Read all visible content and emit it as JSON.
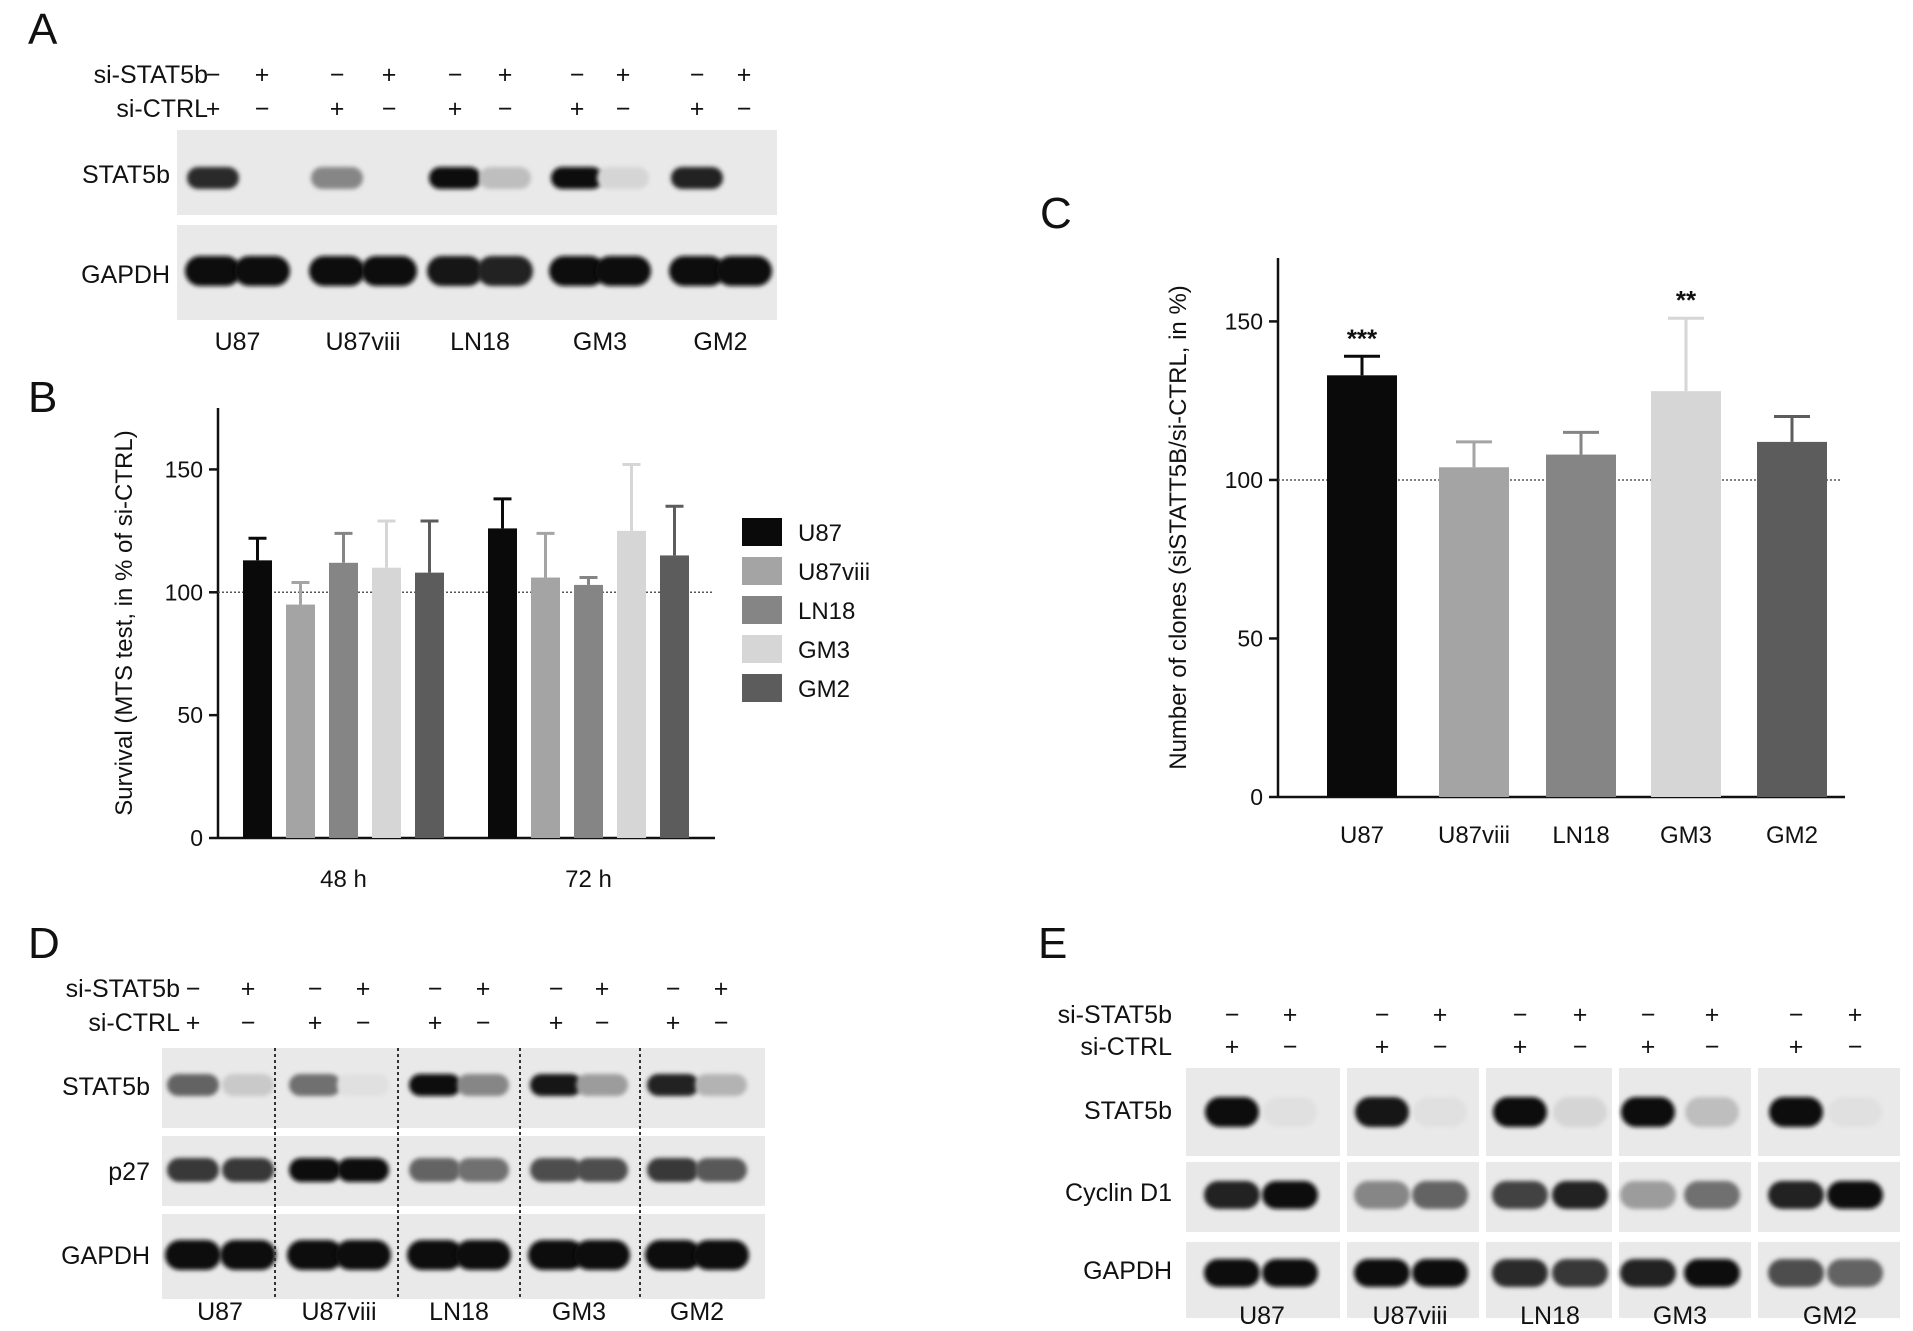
{
  "panel_letters": {
    "a": "A",
    "b": "B",
    "c": "C",
    "d": "D",
    "e": "E"
  },
  "blot_a": {
    "row_labels": {
      "stat": "STAT5b",
      "gapdh": "GAPDH"
    },
    "treat_labels": {
      "stat5b": "si-STAT5b",
      "ctrl": "si-CTRL"
    },
    "sign_plus": "+",
    "sign_minus": "−",
    "stat5b_pattern": [
      "−",
      "+",
      "−",
      "+",
      "−",
      "+",
      "−",
      "+",
      "−",
      "+"
    ],
    "ctrl_pattern": [
      "+",
      "−",
      "+",
      "−",
      "+",
      "−",
      "+",
      "−",
      "+",
      "−"
    ],
    "cell_lines": [
      "U87",
      "U87viii",
      "LN18",
      "GM3",
      "GM2"
    ],
    "band_intensity": {
      "stat5b": [
        0.85,
        0.0,
        0.45,
        0.0,
        1.0,
        0.2,
        1.0,
        0.1,
        0.9,
        0.0
      ],
      "gapdh": [
        1,
        1,
        1,
        1,
        0.95,
        0.9,
        1,
        1,
        1,
        1
      ]
    }
  },
  "blot_d": {
    "row_labels": {
      "stat": "STAT5b",
      "p27": "p27",
      "gapdh": "GAPDH"
    },
    "treat_labels": {
      "stat5b": "si-STAT5b",
      "ctrl": "si-CTRL"
    },
    "cell_lines": [
      "U87",
      "U87viii",
      "LN18",
      "GM3",
      "GM2"
    ],
    "band_intensity": {
      "stat5b": [
        0.6,
        0.15,
        0.55,
        0.05,
        1.0,
        0.45,
        0.95,
        0.35,
        0.9,
        0.25
      ],
      "p27": [
        0.8,
        0.8,
        1.0,
        1.0,
        0.6,
        0.55,
        0.7,
        0.7,
        0.8,
        0.65
      ],
      "gapdh": [
        1,
        1,
        1,
        1,
        1,
        1,
        1,
        1,
        1,
        1
      ]
    }
  },
  "blot_e": {
    "row_labels": {
      "stat": "STAT5b",
      "cyclin": "Cyclin D1",
      "gapdh": "GAPDH"
    },
    "treat_labels": {
      "stat5b": "si-STAT5b",
      "ctrl": "si-CTRL"
    },
    "cell_lines": [
      "U87",
      "U87viii",
      "LN18",
      "GM3",
      "GM2"
    ],
    "band_intensity": {
      "stat5b": [
        1.0,
        0.05,
        0.95,
        0.05,
        1.0,
        0.1,
        1.0,
        0.2,
        1.0,
        0.05
      ],
      "cyclin": [
        0.9,
        1.0,
        0.45,
        0.6,
        0.75,
        0.9,
        0.35,
        0.55,
        0.9,
        1.0
      ],
      "gapdh": [
        1,
        1,
        1,
        1,
        0.85,
        0.8,
        0.9,
        1,
        0.7,
        0.6
      ]
    }
  },
  "chart_data": [
    {
      "panel": "B",
      "type": "bar",
      "categories": [
        "48 h",
        "72 h"
      ],
      "ylabel": "Survival (MTS test, in % of si-CTRL)",
      "ylim": [
        0,
        175
      ],
      "yticks": [
        0,
        50,
        100,
        150
      ],
      "reference_line": 100,
      "legend_position": "right",
      "series": [
        {
          "name": "U87",
          "color": "#0a0a0a",
          "values": [
            113,
            126
          ],
          "errors": [
            9,
            12
          ]
        },
        {
          "name": "U87viii",
          "color": "#a4a4a4",
          "values": [
            95,
            106
          ],
          "errors": [
            9,
            18
          ]
        },
        {
          "name": "LN18",
          "color": "#858585",
          "values": [
            112,
            103
          ],
          "errors": [
            12,
            3
          ]
        },
        {
          "name": "GM3",
          "color": "#d6d6d6",
          "values": [
            110,
            125
          ],
          "errors": [
            19,
            27
          ]
        },
        {
          "name": "GM2",
          "color": "#5c5c5c",
          "values": [
            108,
            115
          ],
          "errors": [
            21,
            20
          ]
        }
      ]
    },
    {
      "panel": "C",
      "type": "bar",
      "categories": [
        "U87",
        "U87viii",
        "LN18",
        "GM3",
        "GM2"
      ],
      "values": [
        133,
        104,
        108,
        128,
        112
      ],
      "errors": [
        6,
        8,
        7,
        23,
        8
      ],
      "colors": [
        "#0a0a0a",
        "#a4a4a4",
        "#858585",
        "#d6d6d6",
        "#5c5c5c"
      ],
      "annotations": [
        "***",
        "",
        "",
        "**",
        ""
      ],
      "ylabel": "Number of clones (siSTATT5B/si-CTRL, in %)",
      "ylim": [
        0,
        170
      ],
      "yticks": [
        0,
        50,
        100,
        150
      ],
      "reference_line": 100
    }
  ]
}
